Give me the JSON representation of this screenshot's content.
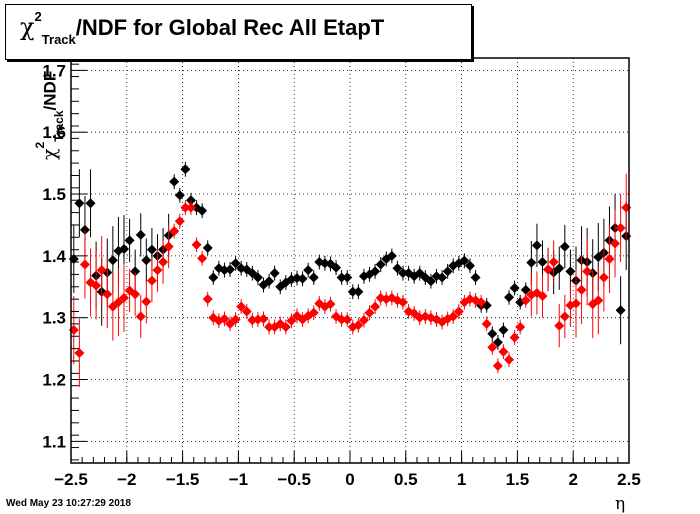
{
  "title": {
    "symbol": "χ",
    "superscript": "2",
    "subscript": "Track",
    "text": "/NDF for Global Rec All EtapT"
  },
  "timestamp": "Wed May 23 10:27:29 2018",
  "chart_data": {
    "type": "scatter",
    "title": "χ²_Track/NDF for Global Rec All EtapT",
    "xlabel": "η",
    "ylabel": "χ²_Track/NDF",
    "xlim": [
      -2.5,
      2.5
    ],
    "ylim": [
      1.065,
      1.72
    ],
    "x_ticks": [
      -2.5,
      -2,
      -1.5,
      -1,
      -0.5,
      0,
      0.5,
      1,
      1.5,
      2,
      2.5
    ],
    "x_tick_labels": [
      "−2.5",
      "−2",
      "−1.5",
      "−1",
      "−0.5",
      "0",
      "0.5",
      "1",
      "1.5",
      "2",
      "2.5"
    ],
    "y_ticks": [
      1.1,
      1.2,
      1.3,
      1.4,
      1.5,
      1.6,
      1.7
    ],
    "y_tick_labels": [
      "1.1",
      "1.2",
      "1.3",
      "1.4",
      "1.5",
      "1.6",
      "1.7"
    ],
    "grid": true,
    "series": [
      {
        "color": "#000000",
        "x": [
          -2.475,
          -2.425,
          -2.375,
          -2.325,
          -2.275,
          -2.225,
          -2.175,
          -2.125,
          -2.075,
          -2.025,
          -1.975,
          -1.925,
          -1.875,
          -1.825,
          -1.775,
          -1.725,
          -1.675,
          -1.625,
          -1.575,
          -1.525,
          -1.475,
          -1.425,
          -1.375,
          -1.325,
          -1.275,
          -1.225,
          -1.175,
          -1.125,
          -1.075,
          -1.025,
          -0.975,
          -0.925,
          -0.875,
          -0.825,
          -0.775,
          -0.725,
          -0.675,
          -0.625,
          -0.575,
          -0.525,
          -0.475,
          -0.425,
          -0.375,
          -0.325,
          -0.275,
          -0.225,
          -0.175,
          -0.125,
          -0.075,
          -0.025,
          0.025,
          0.075,
          0.125,
          0.175,
          0.225,
          0.275,
          0.325,
          0.375,
          0.425,
          0.475,
          0.525,
          0.575,
          0.625,
          0.675,
          0.725,
          0.775,
          0.825,
          0.875,
          0.925,
          0.975,
          1.025,
          1.075,
          1.125,
          1.175,
          1.225,
          1.275,
          1.325,
          1.375,
          1.425,
          1.475,
          1.525,
          1.575,
          1.625,
          1.675,
          1.725,
          1.775,
          1.825,
          1.875,
          1.925,
          1.975,
          2.025,
          2.075,
          2.125,
          2.175,
          2.225,
          2.275,
          2.325,
          2.375,
          2.425,
          2.475
        ],
        "y": [
          1.395,
          1.485,
          1.442,
          1.485,
          1.368,
          1.342,
          1.373,
          1.393,
          1.408,
          1.411,
          1.425,
          1.375,
          1.434,
          1.393,
          1.41,
          1.4,
          1.41,
          1.433,
          1.52,
          1.498,
          1.54,
          1.49,
          1.478,
          1.473,
          1.413,
          1.365,
          1.38,
          1.377,
          1.378,
          1.388,
          1.38,
          1.378,
          1.372,
          1.365,
          1.353,
          1.359,
          1.372,
          1.35,
          1.357,
          1.362,
          1.364,
          1.363,
          1.377,
          1.365,
          1.39,
          1.388,
          1.387,
          1.381,
          1.365,
          1.365,
          1.342,
          1.342,
          1.367,
          1.37,
          1.375,
          1.386,
          1.395,
          1.4,
          1.38,
          1.372,
          1.372,
          1.367,
          1.372,
          1.365,
          1.359,
          1.367,
          1.365,
          1.375,
          1.384,
          1.388,
          1.392,
          1.384,
          1.365,
          1.32,
          1.32,
          1.274,
          1.26,
          1.28,
          1.333,
          1.348,
          1.325,
          1.345,
          1.389,
          1.417,
          1.39,
          1.378,
          1.373,
          1.38,
          1.415,
          1.375,
          1.36,
          1.393,
          1.39,
          1.372,
          1.398,
          1.405,
          1.425,
          1.445,
          1.312,
          1.432
        ]
      },
      {
        "color": "#ff0000",
        "x": [
          -2.475,
          -2.425,
          -2.375,
          -2.325,
          -2.275,
          -2.225,
          -2.175,
          -2.125,
          -2.075,
          -2.025,
          -1.975,
          -1.925,
          -1.875,
          -1.825,
          -1.775,
          -1.725,
          -1.675,
          -1.625,
          -1.575,
          -1.525,
          -1.475,
          -1.425,
          -1.375,
          -1.325,
          -1.275,
          -1.225,
          -1.175,
          -1.125,
          -1.075,
          -1.025,
          -0.975,
          -0.925,
          -0.875,
          -0.825,
          -0.775,
          -0.725,
          -0.675,
          -0.625,
          -0.575,
          -0.525,
          -0.475,
          -0.425,
          -0.375,
          -0.325,
          -0.275,
          -0.225,
          -0.175,
          -0.125,
          -0.075,
          -0.025,
          0.025,
          0.075,
          0.125,
          0.175,
          0.225,
          0.275,
          0.325,
          0.375,
          0.425,
          0.475,
          0.525,
          0.575,
          0.625,
          0.675,
          0.725,
          0.775,
          0.825,
          0.875,
          0.925,
          0.975,
          1.025,
          1.075,
          1.125,
          1.175,
          1.225,
          1.275,
          1.325,
          1.375,
          1.425,
          1.475,
          1.525,
          1.575,
          1.625,
          1.675,
          1.725,
          1.775,
          1.825,
          1.875,
          1.925,
          1.975,
          2.025,
          2.075,
          2.125,
          2.175,
          2.225,
          2.275,
          2.325,
          2.375,
          2.425,
          2.475
        ],
        "y": [
          1.28,
          1.243,
          1.386,
          1.357,
          1.352,
          1.377,
          1.338,
          1.318,
          1.325,
          1.332,
          1.344,
          1.338,
          1.302,
          1.326,
          1.36,
          1.377,
          1.39,
          1.415,
          1.44,
          1.456,
          1.478,
          1.478,
          1.418,
          1.396,
          1.33,
          1.3,
          1.295,
          1.298,
          1.29,
          1.297,
          1.318,
          1.31,
          1.296,
          1.297,
          1.298,
          1.285,
          1.285,
          1.29,
          1.285,
          1.295,
          1.303,
          1.297,
          1.303,
          1.308,
          1.323,
          1.318,
          1.322,
          1.302,
          1.297,
          1.297,
          1.285,
          1.288,
          1.296,
          1.308,
          1.318,
          1.332,
          1.33,
          1.332,
          1.328,
          1.325,
          1.31,
          1.307,
          1.3,
          1.302,
          1.3,
          1.297,
          1.293,
          1.298,
          1.302,
          1.31,
          1.325,
          1.33,
          1.328,
          1.325,
          1.29,
          1.252,
          1.222,
          1.245,
          1.232,
          1.268,
          1.285,
          1.328,
          1.337,
          1.34,
          1.335,
          1.378,
          1.39,
          1.287,
          1.302,
          1.32,
          1.323,
          1.345,
          1.375,
          1.322,
          1.328,
          1.365,
          1.395,
          1.42,
          1.445,
          1.478
        ]
      }
    ]
  }
}
